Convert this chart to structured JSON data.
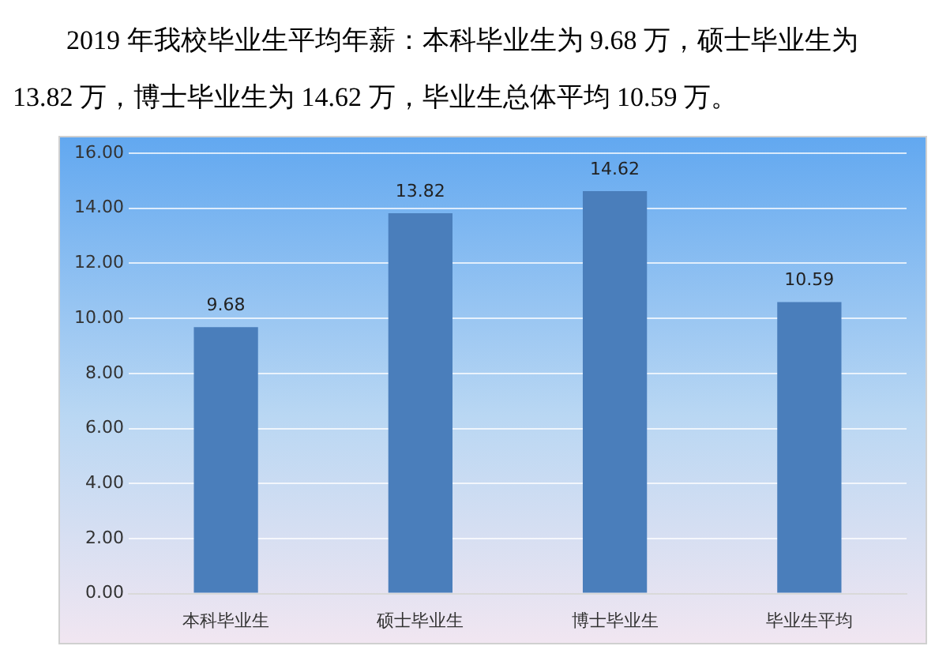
{
  "chart_data": {
    "type": "bar",
    "title": "2019 年我校毕业生平均年薪：本科毕业生为 9.68 万，硕士毕业生为 13.82 万，博士毕业生为 14.62 万，毕业生总体平均 10.59 万。",
    "categories": [
      "本科毕业生",
      "硕士毕业生",
      "博士毕业生",
      "毕业生平均"
    ],
    "values": [
      9.68,
      13.82,
      14.62,
      10.59
    ],
    "color": "#4a7ebb",
    "ylim": [
      0,
      16
    ],
    "yticks": [
      {
        "value": 0,
        "label": "0.00"
      },
      {
        "value": 2,
        "label": "2.00"
      },
      {
        "value": 4,
        "label": "4.00"
      },
      {
        "value": 6,
        "label": "6.00"
      },
      {
        "value": 8,
        "label": "8.00"
      },
      {
        "value": 10,
        "label": "10.00"
      },
      {
        "value": 12,
        "label": "12.00"
      },
      {
        "value": 14,
        "label": "14.00"
      },
      {
        "value": 16,
        "label": "16.00"
      }
    ],
    "grid": "y",
    "data_labels": true
  }
}
